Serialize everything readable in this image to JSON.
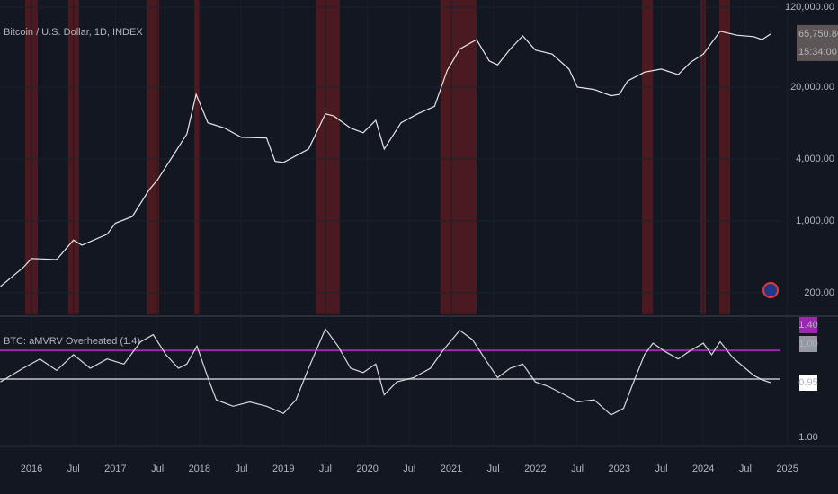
{
  "chart_data": [
    {
      "type": "line",
      "title": "Bitcoin / U.S. Dollar, 1D, INDEX",
      "log_scale": true,
      "color": "#e8e8e8",
      "band_color": "#4a1a20",
      "xlim": [
        2015.625,
        2025.604
      ],
      "ylim": [
        123,
        141000
      ],
      "yticks": [
        {
          "value": 200,
          "label": "200.00"
        },
        {
          "value": 1000,
          "label": "1,000.00"
        },
        {
          "value": 4000,
          "label": "4,000.00"
        },
        {
          "value": 20000,
          "label": "20,000.00"
        },
        {
          "value": 120000,
          "label": "120,000.00"
        }
      ],
      "highlight_ranges": [
        [
          2015.925,
          2016.075
        ],
        [
          2016.439,
          2016.567
        ],
        [
          2017.37,
          2017.52
        ],
        [
          2017.94,
          2018.0
        ],
        [
          2019.39,
          2019.67
        ],
        [
          2020.87,
          2021.3
        ],
        [
          2023.27,
          2023.4
        ],
        [
          2023.965,
          2024.03
        ],
        [
          2024.19,
          2024.32
        ]
      ],
      "x": [
        2015.63,
        2015.9,
        2016.0,
        2016.3,
        2016.5,
        2016.6,
        2016.9,
        2017.0,
        2017.2,
        2017.4,
        2017.5,
        2017.7,
        2017.85,
        2017.96,
        2018.1,
        2018.3,
        2018.5,
        2018.8,
        2018.9,
        2019.0,
        2019.3,
        2019.5,
        2019.6,
        2019.8,
        2019.95,
        2020.1,
        2020.2,
        2020.4,
        2020.6,
        2020.8,
        2020.95,
        2021.1,
        2021.3,
        2021.45,
        2021.55,
        2021.7,
        2021.85,
        2022.0,
        2022.2,
        2022.4,
        2022.5,
        2022.7,
        2022.9,
        2023.0,
        2023.1,
        2023.3,
        2023.5,
        2023.7,
        2023.85,
        2024.0,
        2024.2,
        2024.4,
        2024.6,
        2024.7,
        2024.8
      ],
      "values": [
        230,
        350,
        430,
        420,
        650,
        580,
        740,
        950,
        1100,
        2000,
        2500,
        4500,
        7000,
        17000,
        9000,
        8000,
        6500,
        6400,
        3800,
        3700,
        5000,
        11000,
        10500,
        8000,
        7200,
        9500,
        5000,
        9000,
        11000,
        13000,
        29000,
        47000,
        58000,
        36000,
        33000,
        47000,
        63000,
        46000,
        42000,
        30000,
        20000,
        19000,
        16500,
        17000,
        23000,
        28000,
        30000,
        26500,
        35000,
        42000,
        70000,
        64000,
        62000,
        58000,
        65750.86
      ],
      "last_label": "65,750.86",
      "countdown": "15:34:00"
    },
    {
      "type": "line",
      "title": "BTC: aMVRV Overheated (1.4)",
      "color": "#d9d9d9",
      "xlim": [
        2015.625,
        2025.604
      ],
      "ylim": [
        0.06,
        1.84
      ],
      "xticks": [
        2016,
        {
          "value": 2016.5,
          "label": "Jul"
        },
        2017,
        {
          "value": 2017.5,
          "label": "Jul"
        },
        2018,
        {
          "value": 2018.5,
          "label": "Jul"
        },
        2019,
        {
          "value": 2019.5,
          "label": "Jul"
        },
        2020,
        {
          "value": 2020.5,
          "label": "Jul"
        },
        2021,
        {
          "value": 2021.5,
          "label": "Jul"
        },
        2022,
        {
          "value": 2022.5,
          "label": "Jul"
        },
        2023,
        {
          "value": 2023.5,
          "label": "Jul"
        },
        2024,
        {
          "value": 2024.5,
          "label": "Jul"
        },
        2025
      ],
      "hlines": [
        {
          "value": 1.4,
          "label": "1.40",
          "color": "#9c27b0"
        },
        {
          "value": 1,
          "label": "1.00",
          "color": "#9598a1"
        }
      ],
      "x": [
        2015.63,
        2015.9,
        2016.1,
        2016.3,
        2016.5,
        2016.7,
        2016.9,
        2017.1,
        2017.3,
        2017.45,
        2017.6,
        2017.75,
        2017.85,
        2017.97,
        2018.1,
        2018.2,
        2018.4,
        2018.6,
        2018.8,
        2019.0,
        2019.15,
        2019.3,
        2019.5,
        2019.65,
        2019.8,
        2019.95,
        2020.1,
        2020.2,
        2020.35,
        2020.55,
        2020.75,
        2020.9,
        2021.1,
        2021.25,
        2021.4,
        2021.55,
        2021.7,
        2021.85,
        2022.0,
        2022.15,
        2022.35,
        2022.5,
        2022.7,
        2022.9,
        2023.05,
        2023.15,
        2023.3,
        2023.4,
        2023.55,
        2023.7,
        2023.85,
        2024.0,
        2024.1,
        2024.2,
        2024.35,
        2024.5,
        2024.6,
        2024.7,
        2024.8
      ],
      "values": [
        0.96,
        1.15,
        1.28,
        1.12,
        1.34,
        1.15,
        1.28,
        1.21,
        1.52,
        1.62,
        1.34,
        1.15,
        1.21,
        1.46,
        1.02,
        0.71,
        0.62,
        0.68,
        0.62,
        0.52,
        0.71,
        1.15,
        1.7,
        1.46,
        1.15,
        1.09,
        1.21,
        0.78,
        0.96,
        1.02,
        1.15,
        1.4,
        1.68,
        1.55,
        1.28,
        1.02,
        1.15,
        1.21,
        0.96,
        0.9,
        0.78,
        0.68,
        0.71,
        0.5,
        0.59,
        0.9,
        1.34,
        1.5,
        1.38,
        1.28,
        1.4,
        1.5,
        1.34,
        1.52,
        1.3,
        1.15,
        1.05,
        0.99,
        0.95
      ],
      "last_label": "0.95",
      "scale_label": "1.00"
    }
  ]
}
